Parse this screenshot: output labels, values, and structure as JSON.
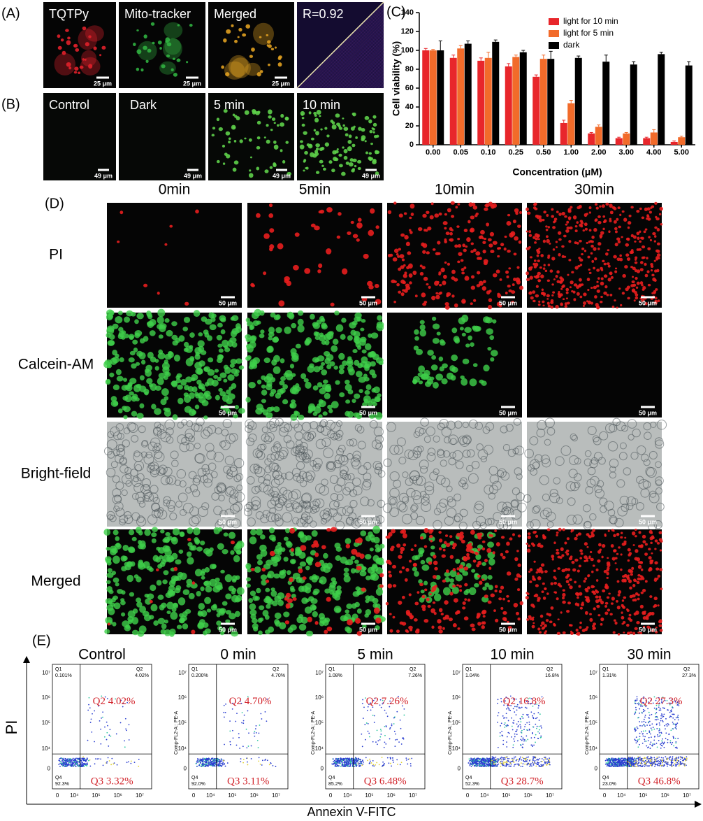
{
  "figure": {
    "panel_labels": [
      "(A)",
      "(B)",
      "(C)",
      "(D)",
      "(E)"
    ],
    "a": {
      "titles": [
        "TQTPy",
        "Mito-tracker",
        "Merged",
        "R=0.92"
      ],
      "scale": "25 μm"
    },
    "b": {
      "titles": [
        "Control",
        "Dark",
        "5 min",
        "10 min"
      ],
      "scale": "49 μm"
    },
    "d": {
      "columns": [
        "0min",
        "5min",
        "10min",
        "30min"
      ],
      "rows": [
        "PI",
        "Calcein-AM",
        "Bright-field",
        "Merged"
      ],
      "scale": "50 μm"
    },
    "e": {
      "quadrants": [
        "Q1",
        "Q2",
        "Q3",
        "Q4"
      ],
      "plots": [
        {
          "title": "Control",
          "q1_value": "0.101%",
          "q2_value": "4.02%",
          "q4_value": "92.3%",
          "q2_note": "Q2  4.02%",
          "q3_note": "Q3  3.32%"
        },
        {
          "title": "0 min",
          "q1_value": "0.200%",
          "q2_value": "4.70%",
          "q4_value": "92.0%",
          "q2_note": "Q2  4.70%",
          "q3_note": "Q3  3.11%"
        },
        {
          "title": "5 min",
          "q1_value": "1.08%",
          "q2_value": "7.26%",
          "q4_value": "85.2%",
          "q2_note": "Q2  7.26%",
          "q3_note": "Q3  6.48%"
        },
        {
          "title": "10 min",
          "q1_value": "1.04%",
          "q2_value": "16.8%",
          "q4_value": "52.3%",
          "q2_note": "Q2  16.8%",
          "q3_note": "Q3  28.7%"
        },
        {
          "title": "30 min",
          "q1_value": "1.31%",
          "q2_value": "27.3%",
          "q4_value": "23.0%",
          "q2_note": "Q2  27.3%",
          "q3_note": "Q3  46.8%"
        }
      ],
      "axis_ticks": [
        "0",
        "10⁴",
        "10⁵",
        "10⁶",
        "10⁷"
      ],
      "channel_label": "Comp-FL2-A:: PE-A",
      "xlabel": "Annexin V-FITC",
      "ylabel": "PI"
    }
  },
  "chart_data": {
    "type": "bar",
    "xlabel": "Concentration (μM)",
    "ylabel": "Cell viability (%)",
    "categories": [
      "0.00",
      "0.05",
      "0.10",
      "0.25",
      "0.50",
      "1.00",
      "2.00",
      "3.00",
      "4.00",
      "5.00"
    ],
    "series": [
      {
        "name": "light for 10 min",
        "color": "#e8262b",
        "values": [
          100,
          92,
          89,
          83,
          72,
          23,
          12,
          7,
          7,
          3
        ],
        "errors": [
          2,
          3,
          3,
          3,
          2,
          3,
          1,
          1,
          1,
          1
        ]
      },
      {
        "name": "light for 5 min",
        "color": "#f26b2a",
        "values": [
          100,
          102,
          92,
          93,
          91,
          44,
          19,
          12,
          13,
          8
        ],
        "errors": [
          1,
          3,
          6,
          2,
          4,
          3,
          2,
          1,
          3,
          1
        ]
      },
      {
        "name": "dark",
        "color": "#000000",
        "values": [
          100,
          107,
          109,
          98,
          91,
          92,
          88,
          85,
          96,
          84
        ],
        "errors": [
          10,
          3,
          2,
          2,
          8,
          2,
          7,
          3,
          2,
          4
        ]
      }
    ],
    "ylim": [
      0,
      140
    ],
    "yticks": [
      0,
      20,
      40,
      60,
      80,
      100,
      120,
      140
    ]
  }
}
